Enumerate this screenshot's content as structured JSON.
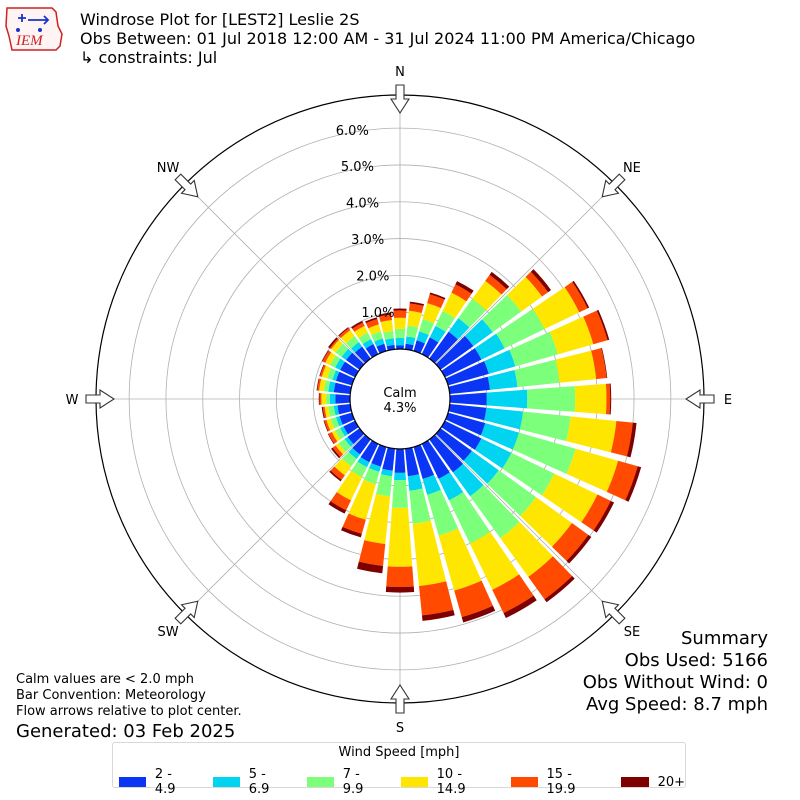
{
  "header": {
    "title": "Windrose Plot for [LEST2] Leslie 2S",
    "subtitle": "Obs Between: 01 Jul 2018 12:00 AM - 31 Jul 2024 11:00 PM America/Chicago",
    "constraints": "↳ constraints: Jul"
  },
  "logo": {
    "text": "IEM",
    "color": "#cc2222",
    "accent": "#1a33cc"
  },
  "calm": {
    "label": "Calm",
    "value": "4.3%"
  },
  "notes": {
    "line1": "Calm values are < 2.0 mph",
    "line2": "Bar Convention: Meteorology",
    "line3": "Flow arrows relative to plot center.",
    "generated": "Generated: 03 Feb 2025"
  },
  "summary": {
    "title": "Summary",
    "obs_used": "Obs Used: 5166",
    "obs_without_wind": "Obs Without Wind: 0",
    "avg_speed": "Avg Speed: 8.7 mph"
  },
  "legend": {
    "title": "Wind Speed [mph]",
    "items": [
      {
        "label": "2 - 4.9",
        "color": "#0a35f5"
      },
      {
        "label": "5 - 6.9",
        "color": "#00d4f0"
      },
      {
        "label": "7 - 9.9",
        "color": "#7cff7a"
      },
      {
        "label": "10 - 14.9",
        "color": "#ffe600"
      },
      {
        "label": "15 - 19.9",
        "color": "#ff4a00"
      },
      {
        "label": "20+",
        "color": "#7f0000"
      }
    ]
  },
  "chart_data": {
    "type": "windrose",
    "r_ticks": [
      1.0,
      2.0,
      3.0,
      4.0,
      5.0,
      6.0
    ],
    "r_tick_labels": [
      "1.0%",
      "2.0%",
      "3.0%",
      "4.0%",
      "5.0%",
      "6.0%"
    ],
    "r_max": 6.9,
    "cardinal_labels": [
      {
        "label": "N",
        "angle": 0
      },
      {
        "label": "NE",
        "angle": 45
      },
      {
        "label": "E",
        "angle": 90
      },
      {
        "label": "SE",
        "angle": 135
      },
      {
        "label": "S",
        "angle": 180
      },
      {
        "label": "SW",
        "angle": 225
      },
      {
        "label": "W",
        "angle": 270
      },
      {
        "label": "NW",
        "angle": 315
      }
    ],
    "speed_bins": [
      "2 - 4.9",
      "5 - 6.9",
      "7 - 9.9",
      "10 - 14.9",
      "15 - 19.9",
      "20+"
    ],
    "colors": [
      "#0a35f5",
      "#00d4f0",
      "#7cff7a",
      "#ffe600",
      "#ff4a00",
      "#7f0000"
    ],
    "directions": [
      0,
      10,
      20,
      30,
      40,
      50,
      60,
      70,
      80,
      90,
      100,
      110,
      120,
      130,
      140,
      150,
      160,
      170,
      180,
      190,
      200,
      210,
      220,
      230,
      240,
      250,
      260,
      270,
      280,
      290,
      300,
      310,
      320,
      330,
      340,
      350
    ],
    "cumulative": [
      [
        0.1,
        0.3,
        0.55,
        0.85,
        1.05,
        1.1
      ],
      [
        0.15,
        0.35,
        0.65,
        1.05,
        1.25,
        1.3
      ],
      [
        0.3,
        0.55,
        0.9,
        1.35,
        1.6,
        1.65
      ],
      [
        0.5,
        0.85,
        1.3,
        1.85,
        2.1,
        2.2
      ],
      [
        0.9,
        1.35,
        2.0,
        2.6,
        2.8,
        2.9
      ],
      [
        1.1,
        1.75,
        2.7,
        3.4,
        3.6,
        3.7
      ],
      [
        1.1,
        1.8,
        3.0,
        4.05,
        4.3,
        4.35
      ],
      [
        1.15,
        1.9,
        3.1,
        4.1,
        4.5,
        4.55
      ],
      [
        1.1,
        1.85,
        3.0,
        4.0,
        4.28,
        4.3
      ],
      [
        1.0,
        2.1,
        3.4,
        4.25,
        4.35,
        4.38
      ],
      [
        1.0,
        2.0,
        3.3,
        4.55,
        5.0,
        5.1
      ],
      [
        1.05,
        2.0,
        3.6,
        4.8,
        5.35,
        5.45
      ],
      [
        1.1,
        2.0,
        3.3,
        4.6,
        5.0,
        5.1
      ],
      [
        1.05,
        1.95,
        3.2,
        4.4,
        4.95,
        5.05
      ],
      [
        1.1,
        1.9,
        3.3,
        4.6,
        5.35,
        5.45
      ],
      [
        1.05,
        1.7,
        3.0,
        4.4,
        5.1,
        5.25
      ],
      [
        0.9,
        1.35,
        2.5,
        4.05,
        4.8,
        4.95
      ],
      [
        0.75,
        1.15,
        2.05,
        3.75,
        4.55,
        4.7
      ],
      [
        0.65,
        0.85,
        1.6,
        3.2,
        3.75,
        3.9
      ],
      [
        0.6,
        0.75,
        1.3,
        2.6,
        3.2,
        3.4
      ],
      [
        0.55,
        0.7,
        1.05,
        2.05,
        2.45,
        2.55
      ],
      [
        0.55,
        0.7,
        1.0,
        1.7,
        2.0,
        2.1
      ],
      [
        0.5,
        0.65,
        0.9,
        1.2,
        1.35,
        1.4
      ],
      [
        0.4,
        0.5,
        0.7,
        0.8,
        0.9,
        0.95
      ],
      [
        0.35,
        0.45,
        0.6,
        0.7,
        0.8,
        0.82
      ],
      [
        0.35,
        0.45,
        0.6,
        0.72,
        0.78,
        0.8
      ],
      [
        0.35,
        0.45,
        0.6,
        0.7,
        0.75,
        0.78
      ],
      [
        0.4,
        0.55,
        0.65,
        0.78,
        0.83,
        0.85
      ],
      [
        0.45,
        0.6,
        0.72,
        0.85,
        0.9,
        0.92
      ],
      [
        0.45,
        0.55,
        0.7,
        0.85,
        0.9,
        0.92
      ],
      [
        0.45,
        0.6,
        0.75,
        0.9,
        0.98,
        1.0
      ],
      [
        0.45,
        0.6,
        0.8,
        0.95,
        1.0,
        1.05
      ],
      [
        0.4,
        0.55,
        0.75,
        0.95,
        1.02,
        1.05
      ],
      [
        0.3,
        0.45,
        0.65,
        0.85,
        0.95,
        1.0
      ],
      [
        0.2,
        0.35,
        0.55,
        0.75,
        0.9,
        0.95
      ],
      [
        0.12,
        0.3,
        0.5,
        0.8,
        0.95,
        1.0
      ]
    ]
  }
}
